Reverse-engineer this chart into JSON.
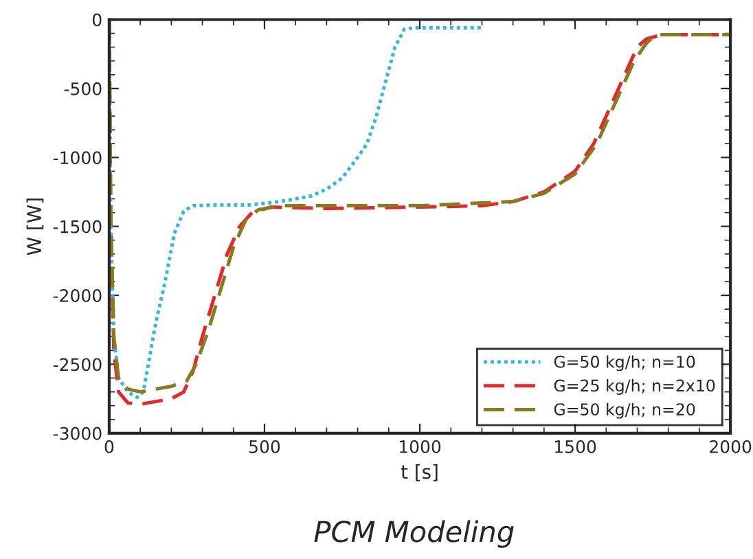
{
  "chart_data": {
    "type": "line",
    "xlabel": "t [s]",
    "ylabel": "W [W]",
    "annotations": [
      "PCM Modeling"
    ],
    "xlim": [
      0,
      2000
    ],
    "xticks": [
      0,
      500,
      1000,
      1500,
      2000
    ],
    "ylim": [
      -3000,
      0
    ],
    "yticks": [
      -3000,
      -2500,
      -2000,
      -1500,
      -1000,
      -500,
      0
    ],
    "grid": false,
    "legend": "lower right",
    "marker": "none",
    "series": [
      {
        "name": "G=50 kg/h; n=10",
        "color": "#33b5e5",
        "line_style": "dotted",
        "x": [
          0,
          5,
          15,
          30,
          60,
          90,
          110,
          150,
          180,
          210,
          240,
          270,
          350,
          450,
          550,
          650,
          700,
          750,
          800,
          830,
          860,
          890,
          920,
          950,
          980,
          1200
        ],
        "values": [
          0,
          -1500,
          -2300,
          -2600,
          -2700,
          -2740,
          -2700,
          -2200,
          -1900,
          -1550,
          -1390,
          -1350,
          -1345,
          -1345,
          -1320,
          -1280,
          -1230,
          -1150,
          -1000,
          -900,
          -700,
          -450,
          -200,
          -70,
          -60,
          -60
        ]
      },
      {
        "name": "G=25 kg/h; n=2x10",
        "color": "#e8262a",
        "line_style": "dashed",
        "x": [
          0,
          5,
          15,
          30,
          60,
          100,
          200,
          240,
          270,
          300,
          340,
          380,
          420,
          460,
          520,
          700,
          1000,
          1200,
          1300,
          1400,
          1500,
          1560,
          1620,
          1670,
          1700,
          1730,
          1780,
          2000
        ],
        "values": [
          0,
          -1500,
          -2400,
          -2700,
          -2780,
          -2790,
          -2750,
          -2700,
          -2550,
          -2300,
          -2000,
          -1700,
          -1500,
          -1400,
          -1360,
          -1370,
          -1360,
          -1350,
          -1320,
          -1250,
          -1100,
          -900,
          -600,
          -350,
          -200,
          -140,
          -110,
          -110
        ]
      },
      {
        "name": "G=50 kg/h; n=20",
        "color": "#8a7a1e",
        "line_style": "dashed",
        "x": [
          0,
          5,
          15,
          30,
          60,
          100,
          200,
          250,
          280,
          320,
          360,
          400,
          440,
          480,
          550,
          1000,
          1300,
          1400,
          1500,
          1570,
          1640,
          1690,
          1730,
          1760,
          2000
        ],
        "values": [
          0,
          -1400,
          -2300,
          -2600,
          -2680,
          -2700,
          -2660,
          -2620,
          -2500,
          -2250,
          -1950,
          -1650,
          -1450,
          -1380,
          -1350,
          -1350,
          -1320,
          -1260,
          -1120,
          -900,
          -550,
          -300,
          -170,
          -110,
          -110
        ]
      }
    ]
  }
}
